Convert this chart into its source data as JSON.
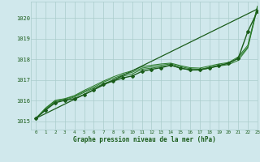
{
  "title": "Graphe pression niveau de la mer (hPa)",
  "bg_color": "#d0e8ec",
  "grid_color": "#aacccc",
  "line_color_dark": "#1a5c1a",
  "line_color_mid": "#2e7d2e",
  "xlim": [
    -0.5,
    23
  ],
  "ylim": [
    1014.6,
    1020.8
  ],
  "xticks": [
    0,
    1,
    2,
    3,
    4,
    5,
    6,
    7,
    8,
    9,
    10,
    11,
    12,
    13,
    14,
    15,
    16,
    17,
    18,
    19,
    20,
    21,
    22,
    23
  ],
  "yticks": [
    1015,
    1016,
    1017,
    1018,
    1019,
    1020
  ],
  "x": [
    0,
    1,
    2,
    3,
    4,
    5,
    6,
    7,
    8,
    9,
    10,
    11,
    12,
    13,
    14,
    15,
    16,
    17,
    18,
    19,
    20,
    21,
    22,
    23
  ],
  "line_straight": [
    1015.15,
    1015.38,
    1015.61,
    1015.84,
    1016.07,
    1016.3,
    1016.53,
    1016.76,
    1016.99,
    1017.22,
    1017.45,
    1017.68,
    1017.91,
    1018.14,
    1018.37,
    1018.6,
    1018.83,
    1019.06,
    1019.29,
    1019.52,
    1019.75,
    1019.98,
    1020.21,
    1020.44
  ],
  "line_marker": [
    1015.15,
    1015.55,
    1015.9,
    1016.02,
    1016.1,
    1016.3,
    1016.52,
    1016.8,
    1016.95,
    1017.1,
    1017.2,
    1017.42,
    1017.52,
    1017.6,
    1017.72,
    1017.58,
    1017.5,
    1017.5,
    1017.58,
    1017.7,
    1017.82,
    1018.05,
    1019.35,
    1020.32
  ],
  "line_b": [
    1015.15,
    1015.58,
    1015.95,
    1016.03,
    1016.18,
    1016.4,
    1016.6,
    1016.82,
    1017.0,
    1017.18,
    1017.3,
    1017.52,
    1017.58,
    1017.65,
    1017.72,
    1017.58,
    1017.48,
    1017.48,
    1017.58,
    1017.68,
    1017.75,
    1017.95,
    1018.55,
    1020.5
  ],
  "line_c": [
    1015.15,
    1015.62,
    1016.0,
    1016.08,
    1016.22,
    1016.45,
    1016.65,
    1016.9,
    1017.08,
    1017.25,
    1017.38,
    1017.58,
    1017.65,
    1017.72,
    1017.78,
    1017.65,
    1017.55,
    1017.52,
    1017.62,
    1017.72,
    1017.8,
    1018.05,
    1018.6,
    1020.55
  ],
  "line_d": [
    1015.15,
    1015.65,
    1016.02,
    1016.1,
    1016.25,
    1016.5,
    1016.72,
    1016.95,
    1017.15,
    1017.32,
    1017.45,
    1017.65,
    1017.72,
    1017.78,
    1017.82,
    1017.7,
    1017.6,
    1017.58,
    1017.68,
    1017.78,
    1017.85,
    1018.12,
    1018.68,
    1020.58
  ]
}
